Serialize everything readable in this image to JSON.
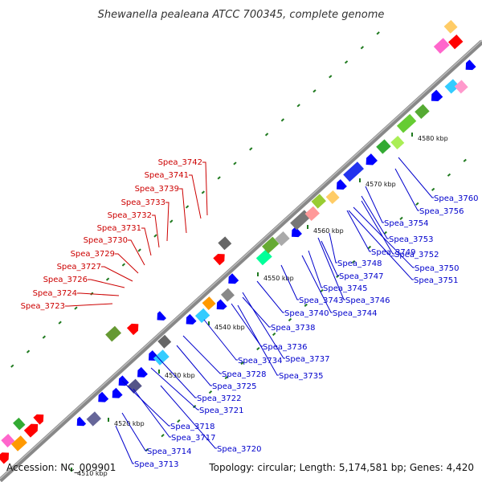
{
  "title": "Shewanella pealeana ATCC 700345, complete genome",
  "footer": {
    "accession": "Accession: NC_009901",
    "summary": "Topology: circular; Length: 5,174,581 bp; Genes: 4,420"
  },
  "colors": {
    "forward_gene": "#ff0000",
    "reverse_gene": "#0000ff",
    "backbone": "#888888",
    "tick": "#1f7a1f",
    "forward_label": "#cc0000",
    "reverse_label": "#0000cc"
  },
  "kbp_ticks": [
    "4510 kbp",
    "4520 kbp",
    "4530 kbp",
    "4540 kbp",
    "4550 kbp",
    "4560 kbp",
    "4570 kbp",
    "4580 kbp"
  ],
  "forward_labels": [
    "Spea_3742",
    "Spea_3741",
    "Spea_3739",
    "Spea_3733",
    "Spea_3732",
    "Spea_3731",
    "Spea_3730",
    "Spea_3729",
    "Spea_3727",
    "Spea_3726",
    "Spea_3724",
    "Spea_3723"
  ],
  "reverse_labels": [
    "Spea_3760",
    "Spea_3756",
    "Spea_3754",
    "Spea_3753",
    "Spea_3752",
    "Spea_3749",
    "Spea_3748",
    "Spea_3750",
    "Spea_3747",
    "Spea_3751",
    "Spea_3745",
    "Spea_3743",
    "Spea_3746",
    "Spea_3744",
    "Spea_3740",
    "Spea_3738",
    "Spea_3736",
    "Spea_3737",
    "Spea_3734",
    "Spea_3735",
    "Spea_3728",
    "Spea_3725",
    "Spea_3722",
    "Spea_3721",
    "Spea_3718",
    "Spea_3717",
    "Spea_3720",
    "Spea_3714",
    "Spea_3713"
  ]
}
